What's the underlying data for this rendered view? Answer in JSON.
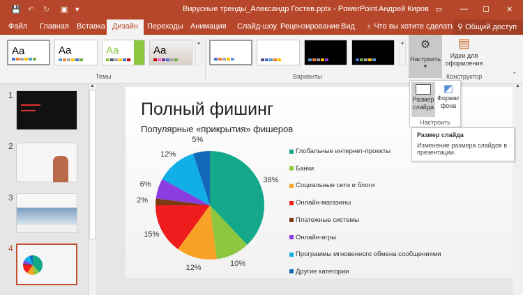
{
  "window": {
    "title": "Вирусные тренды_Александр Гостев.pptx - PowerPoint",
    "user": "Андрей Киров"
  },
  "tabs": [
    {
      "label": "Файл"
    },
    {
      "label": "Главная"
    },
    {
      "label": "Вставка"
    },
    {
      "label": "Дизайн",
      "active": true
    },
    {
      "label": "Переходы"
    },
    {
      "label": "Анимация"
    },
    {
      "label": "Слайд-шоу"
    },
    {
      "label": "Рецензирование"
    },
    {
      "label": "Вид"
    }
  ],
  "tell_me": "Что вы хотите сделать?",
  "share": "Общий доступ",
  "ribbon": {
    "themes_label": "Темы",
    "variants_label": "Варианты",
    "customize_label": "Настроить",
    "design_ideas_label": "Идеи для оформления",
    "designer_group_label": "Конструктор",
    "theme_text": "Aa"
  },
  "dropdown": {
    "slide_size": "Размер слайда",
    "format_bg": "Формат фона",
    "group": "Настроить"
  },
  "tooltip": {
    "title": "Размер слайда",
    "body": "Изменение размера слайдов в презентации."
  },
  "slides": [
    {
      "number": "1"
    },
    {
      "number": "2"
    },
    {
      "number": "3"
    },
    {
      "number": "4",
      "selected": true
    }
  ],
  "slide": {
    "title": "Полный фишинг",
    "subtitle": "Популярные «прикрытия» фишеров"
  },
  "chart_data": {
    "type": "pie",
    "title": "",
    "categories": [
      "Глобальные интернет-проекты",
      "Банки",
      "Социальные сети и блоги",
      "Онлайн-магазины",
      "Платежные системы",
      "Онлайн-игры",
      "Программы мгновенного обмена сообщениями",
      "Другие категории"
    ],
    "values": [
      38,
      10,
      12,
      15,
      2,
      6,
      12,
      5
    ],
    "labels": [
      "38%",
      "10%",
      "12%",
      "15%",
      "2%",
      "6%",
      "12%",
      "5%"
    ],
    "colors": [
      "#13a88a",
      "#8dc63f",
      "#f7a127",
      "#ee1c1c",
      "#7b3a10",
      "#8c3de0",
      "#11aee8",
      "#1368b8"
    ],
    "legend": "right"
  }
}
